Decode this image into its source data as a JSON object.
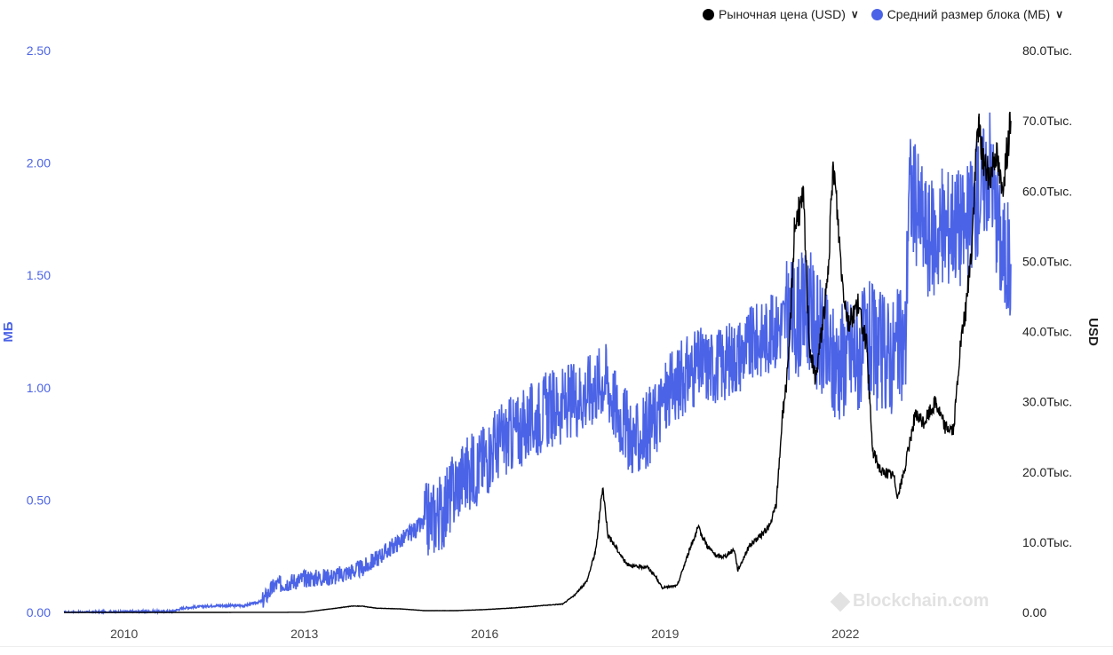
{
  "legend": {
    "price_label": "Рыночная цена (USD)",
    "blocksize_label": "Средний размер блока (МБ)"
  },
  "colors": {
    "price": "#000000",
    "blocksize": "#4b63e6",
    "left_axis": "#4b63e6",
    "right_axis": "#222222"
  },
  "icons": {
    "legend_dot": "circle",
    "dropdown": "chevron-down-icon",
    "watermark": "blockchain-logo-icon"
  },
  "watermark": "Blockchain.com",
  "chart_data": {
    "type": "line",
    "xlabel": "",
    "x_ticks": [
      "2010",
      "2013",
      "2016",
      "2019",
      "2022"
    ],
    "y_left": {
      "label": "МБ",
      "ylim": [
        0,
        2.5
      ],
      "ticks": [
        "0.00",
        "0.50",
        "1.00",
        "1.50",
        "2.00",
        "2.50"
      ]
    },
    "y_right": {
      "label": "USD",
      "ylim": [
        0,
        80000
      ],
      "ticks": [
        "0.00",
        "10.0Тыс.",
        "20.0Тыс.",
        "30.0Тыс.",
        "40.0Тыс.",
        "50.0Тыс.",
        "60.0Тыс.",
        "70.0Тыс.",
        "80.0Тыс."
      ]
    },
    "grid": false,
    "legend_position": "top-right",
    "series": [
      {
        "name": "Рыночная цена (USD)",
        "axis": "right",
        "color": "#000000",
        "x": [
          2009.0,
          2010.5,
          2011.5,
          2012.5,
          2013.0,
          2013.8,
          2013.95,
          2014.2,
          2014.6,
          2015.0,
          2015.5,
          2016.0,
          2016.5,
          2017.0,
          2017.3,
          2017.5,
          2017.7,
          2017.85,
          2017.96,
          2018.05,
          2018.2,
          2018.35,
          2018.5,
          2018.7,
          2018.85,
          2018.95,
          2019.2,
          2019.45,
          2019.55,
          2019.7,
          2019.85,
          2020.0,
          2020.15,
          2020.21,
          2020.4,
          2020.6,
          2020.75,
          2020.85,
          2020.95,
          2021.05,
          2021.15,
          2021.3,
          2021.4,
          2021.5,
          2021.6,
          2021.7,
          2021.8,
          2021.88,
          2021.95,
          2022.05,
          2022.2,
          2022.35,
          2022.45,
          2022.6,
          2022.8,
          2022.87,
          2023.0,
          2023.15,
          2023.3,
          2023.5,
          2023.65,
          2023.8,
          2023.9,
          2024.0,
          2024.1,
          2024.2,
          2024.3,
          2024.4,
          2024.5,
          2024.6,
          2024.75
        ],
        "y": [
          0,
          0,
          5,
          10,
          30,
          900,
          900,
          600,
          500,
          250,
          250,
          400,
          650,
          1000,
          1200,
          2500,
          4500,
          9000,
          18000,
          11000,
          9000,
          7000,
          6500,
          6500,
          5000,
          3500,
          3800,
          10000,
          12000,
          9500,
          8000,
          8000,
          9000,
          6000,
          9500,
          11000,
          12500,
          15500,
          28000,
          35000,
          55000,
          59000,
          38000,
          33000,
          40000,
          47000,
          64000,
          55000,
          47000,
          41000,
          44000,
          38000,
          23000,
          20000,
          19500,
          16500,
          21000,
          28000,
          27000,
          30000,
          26500,
          26000,
          37000,
          43000,
          52000,
          70000,
          64000,
          62000,
          66000,
          60000,
          70000
        ]
      },
      {
        "name": "Средний размер блока (МБ)",
        "axis": "left",
        "color": "#4b63e6",
        "x": [
          2009.0,
          2010.8,
          2011.0,
          2011.5,
          2012.0,
          2012.3,
          2012.5,
          2013.0,
          2013.5,
          2014.0,
          2014.5,
          2015.0,
          2015.3,
          2015.6,
          2015.9,
          2016.2,
          2016.5,
          2016.8,
          2017.0,
          2017.3,
          2017.5,
          2017.8,
          2018.0,
          2018.2,
          2018.5,
          2018.8,
          2019.0,
          2019.3,
          2019.6,
          2019.9,
          2020.2,
          2020.5,
          2020.8,
          2021.0,
          2021.2,
          2021.4,
          2021.6,
          2021.8,
          2022.0,
          2022.2,
          2022.4,
          2022.6,
          2022.8,
          2023.0,
          2023.05,
          2023.2,
          2023.4,
          2023.6,
          2023.8,
          2024.0,
          2024.2,
          2024.4,
          2024.6,
          2024.75
        ],
        "y": [
          0,
          0.005,
          0.02,
          0.03,
          0.03,
          0.05,
          0.12,
          0.15,
          0.16,
          0.2,
          0.3,
          0.4,
          0.45,
          0.6,
          0.65,
          0.75,
          0.8,
          0.85,
          0.9,
          0.92,
          0.95,
          1.0,
          1.05,
          0.9,
          0.75,
          0.85,
          0.95,
          1.05,
          1.1,
          1.1,
          1.15,
          1.2,
          1.25,
          1.3,
          1.32,
          1.35,
          1.2,
          1.1,
          1.15,
          1.15,
          1.2,
          1.15,
          1.15,
          1.2,
          1.9,
          1.8,
          1.65,
          1.7,
          1.75,
          1.7,
          1.85,
          2.0,
          1.6,
          1.55
        ]
      }
    ]
  }
}
